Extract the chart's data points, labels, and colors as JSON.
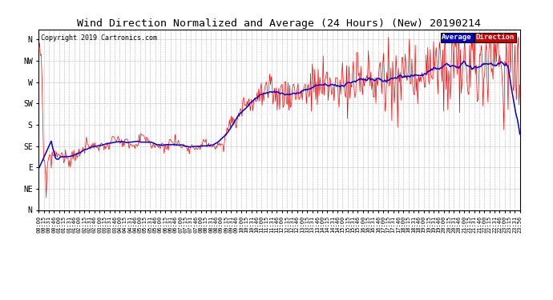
{
  "title": "Wind Direction Normalized and Average (24 Hours) (New) 20190214",
  "copyright": "Copyright 2019 Cartronics.com",
  "ylabel_ticks": [
    "N",
    "NW",
    "W",
    "SW",
    "S",
    "SE",
    "E",
    "NE",
    "N"
  ],
  "ylabel_values": [
    360,
    315,
    270,
    225,
    180,
    135,
    90,
    45,
    0
  ],
  "ylim": [
    0,
    380
  ],
  "legend_avg_label": "Average",
  "legend_dir_label": "Direction",
  "avg_color": "#0000cc",
  "dir_color": "#ff0000",
  "background_color": "#ffffff",
  "grid_color": "#aaaaaa",
  "title_fontsize": 9.5,
  "tick_fontsize": 7,
  "xtick_fontsize": 5.0
}
